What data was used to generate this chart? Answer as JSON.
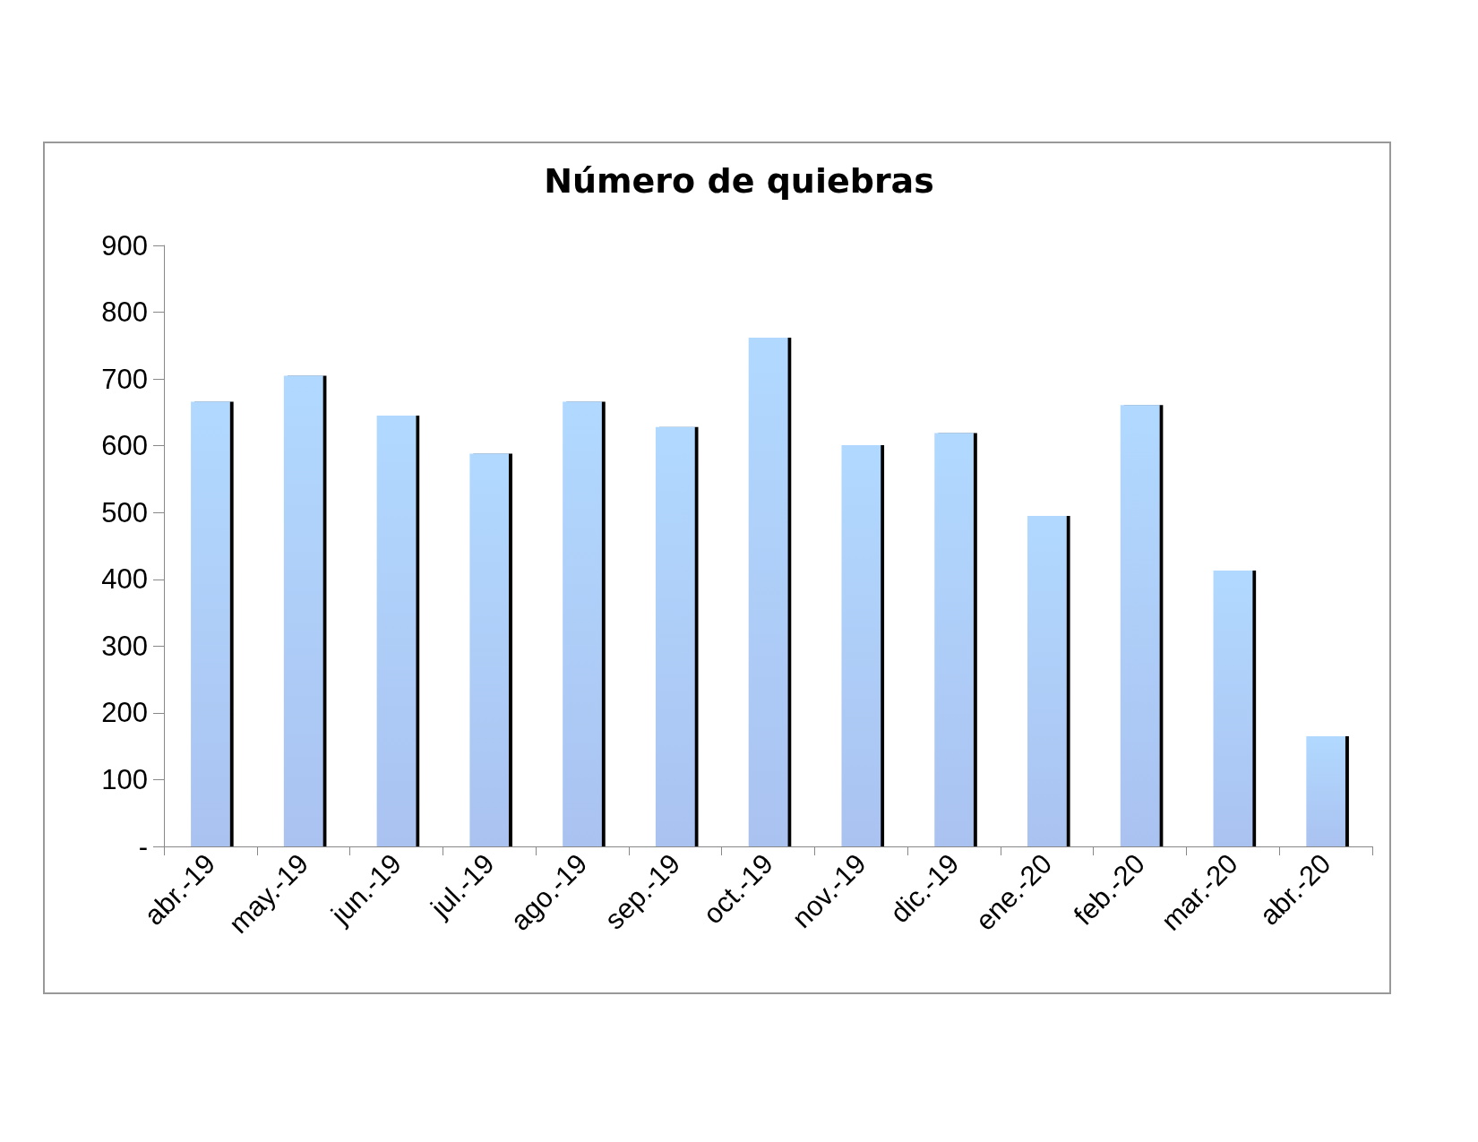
{
  "chart_data": {
    "type": "bar",
    "title": "Número de quiebras",
    "categories": [
      "abr.-19",
      "may.-19",
      "jun.-19",
      "jul.-19",
      "ago.-19",
      "sep.-19",
      "oct.-19",
      "nov.-19",
      "dic.-19",
      "ene.-20",
      "feb.-20",
      "mar.-20",
      "abr.-20"
    ],
    "values": [
      666,
      705,
      645,
      588,
      666,
      628,
      762,
      601,
      619,
      495,
      661,
      413,
      165
    ],
    "color": "#8eaeec",
    "ylim": [
      0,
      900
    ],
    "yticks": [
      {
        "value": 0,
        "label": "-"
      },
      100,
      200,
      300,
      400,
      500,
      600,
      700,
      800,
      900
    ],
    "grid": false
  }
}
